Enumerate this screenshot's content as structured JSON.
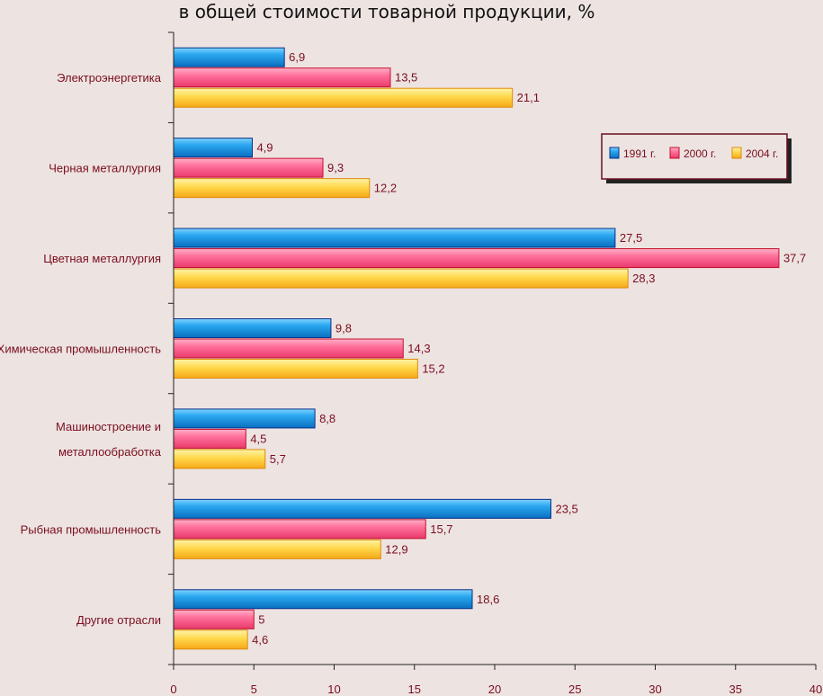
{
  "chart_data": {
    "type": "bar",
    "orientation": "horizontal",
    "title": "в общей стоимости товарной продукции, %",
    "categories": [
      [
        "Электроэнергетика"
      ],
      [
        "Черная металлургия"
      ],
      [
        "Цветная металлургия"
      ],
      [
        "Химическая промышленность"
      ],
      [
        "Машиностроение и",
        "металлообработка"
      ],
      [
        "Рыбная промышленность"
      ],
      [
        "Другие отрасли"
      ]
    ],
    "series": [
      {
        "name": "1991 г.",
        "color": "#1ea0ee",
        "values": [
          6.9,
          4.9,
          27.5,
          9.8,
          8.8,
          23.5,
          18.6
        ]
      },
      {
        "name": "2000 г.",
        "color": "#ff5f8f",
        "values": [
          13.5,
          9.3,
          37.7,
          14.3,
          4.5,
          15.7,
          5
        ]
      },
      {
        "name": "2004 г.",
        "color": "#ffd23a",
        "values": [
          21.1,
          12.2,
          28.3,
          15.2,
          5.7,
          12.9,
          4.6
        ]
      }
    ],
    "value_labels": [
      [
        "6,9",
        "4,9",
        "27,5",
        "9,8",
        "8,8",
        "23,5",
        "18,6"
      ],
      [
        "13,5",
        "9,3",
        "37,7",
        "14,3",
        "4,5",
        "15,7",
        "5"
      ],
      [
        "21,1",
        "12,2",
        "28,3",
        "15,2",
        "5,7",
        "12,9",
        "4,6"
      ]
    ],
    "xlim": [
      0,
      40
    ],
    "xticks": [
      0,
      5,
      10,
      15,
      20,
      25,
      30,
      35,
      40
    ],
    "legend_position": "top-right",
    "grid": false
  }
}
